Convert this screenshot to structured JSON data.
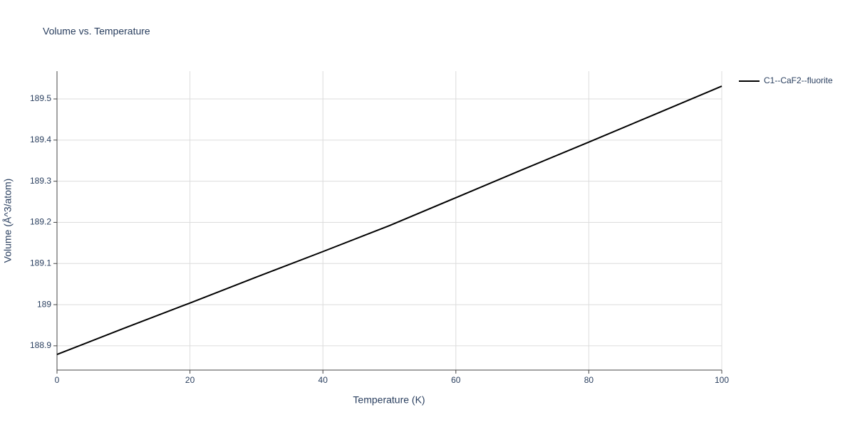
{
  "chart_data": {
    "type": "line",
    "title": "Volume vs. Temperature",
    "x_label": "Temperature (K)",
    "y_label": "Volume (Å^3/atom)",
    "x": [
      0,
      10,
      20,
      30,
      40,
      50,
      60,
      70,
      80,
      90,
      100
    ],
    "series": [
      {
        "name": "C1--CaF2--fluorite",
        "color": "#000000",
        "values": [
          188.879,
          188.942,
          189.004,
          189.067,
          189.129,
          189.192,
          189.26,
          189.328,
          189.395,
          189.463,
          189.531
        ]
      }
    ],
    "xlim": [
      0,
      100
    ],
    "xticks": [
      0,
      20,
      40,
      60,
      80,
      100
    ],
    "ylim": [
      188.841,
      189.5675
    ],
    "yticks": [
      188.9,
      189,
      189.1,
      189.2,
      189.3,
      189.4,
      189.5
    ],
    "grid": true,
    "legend": "top-right"
  }
}
